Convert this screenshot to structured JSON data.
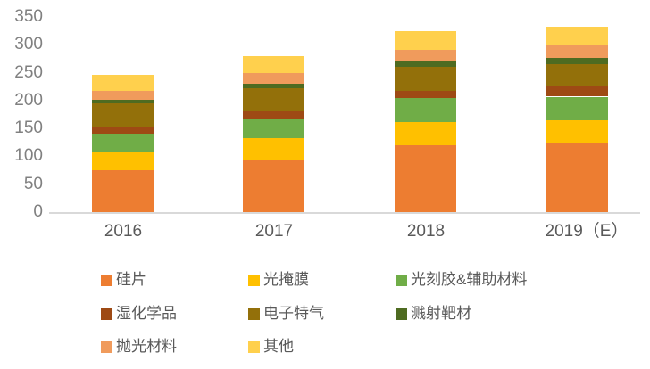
{
  "chart_data": {
    "type": "bar",
    "stacked": true,
    "title": "",
    "xlabel": "",
    "ylabel": "",
    "ylim": [
      0,
      350
    ],
    "yticks": [
      0,
      50,
      100,
      150,
      200,
      250,
      300,
      350
    ],
    "grid": false,
    "legend_position": "bottom",
    "categories": [
      "2016",
      "2017",
      "2018",
      "2019（E）"
    ],
    "series": [
      {
        "name": "硅片",
        "color": "#ED7D31",
        "values": [
          75,
          92,
          120,
          125
        ]
      },
      {
        "name": "光掩膜",
        "color": "#FFC000",
        "values": [
          32,
          40,
          42,
          40
        ]
      },
      {
        "name": "光刻胶&辅助材料",
        "color": "#70AD47",
        "values": [
          34,
          36,
          43,
          42
        ]
      },
      {
        "name": "湿化学品",
        "color": "#9E4A14",
        "values": [
          13,
          13,
          13,
          18
        ]
      },
      {
        "name": "电子特气",
        "color": "#93700A",
        "values": [
          41,
          41,
          43,
          41
        ]
      },
      {
        "name": "溅射靶材",
        "color": "#4E6B21",
        "values": [
          7,
          8,
          9,
          11
        ]
      },
      {
        "name": "抛光材料",
        "color": "#F09B5C",
        "values": [
          16,
          20,
          21,
          22
        ]
      },
      {
        "name": "其他",
        "color": "#FFD04D",
        "values": [
          28,
          30,
          34,
          33
        ]
      }
    ],
    "totals": [
      246,
      280,
      325,
      332
    ],
    "legend_rows": [
      [
        "硅片",
        "光掩膜",
        "光刻胶&辅助材料"
      ],
      [
        "湿化学品",
        "电子特气",
        "溅射靶材"
      ],
      [
        "抛光材料",
        "其他"
      ]
    ]
  },
  "style": {
    "axis_line_color": "#D9D9D9",
    "ytick_color": "#808080",
    "xlabel_color": "#595959",
    "legend_text_color": "#595959",
    "background": "#FFFFFF"
  }
}
